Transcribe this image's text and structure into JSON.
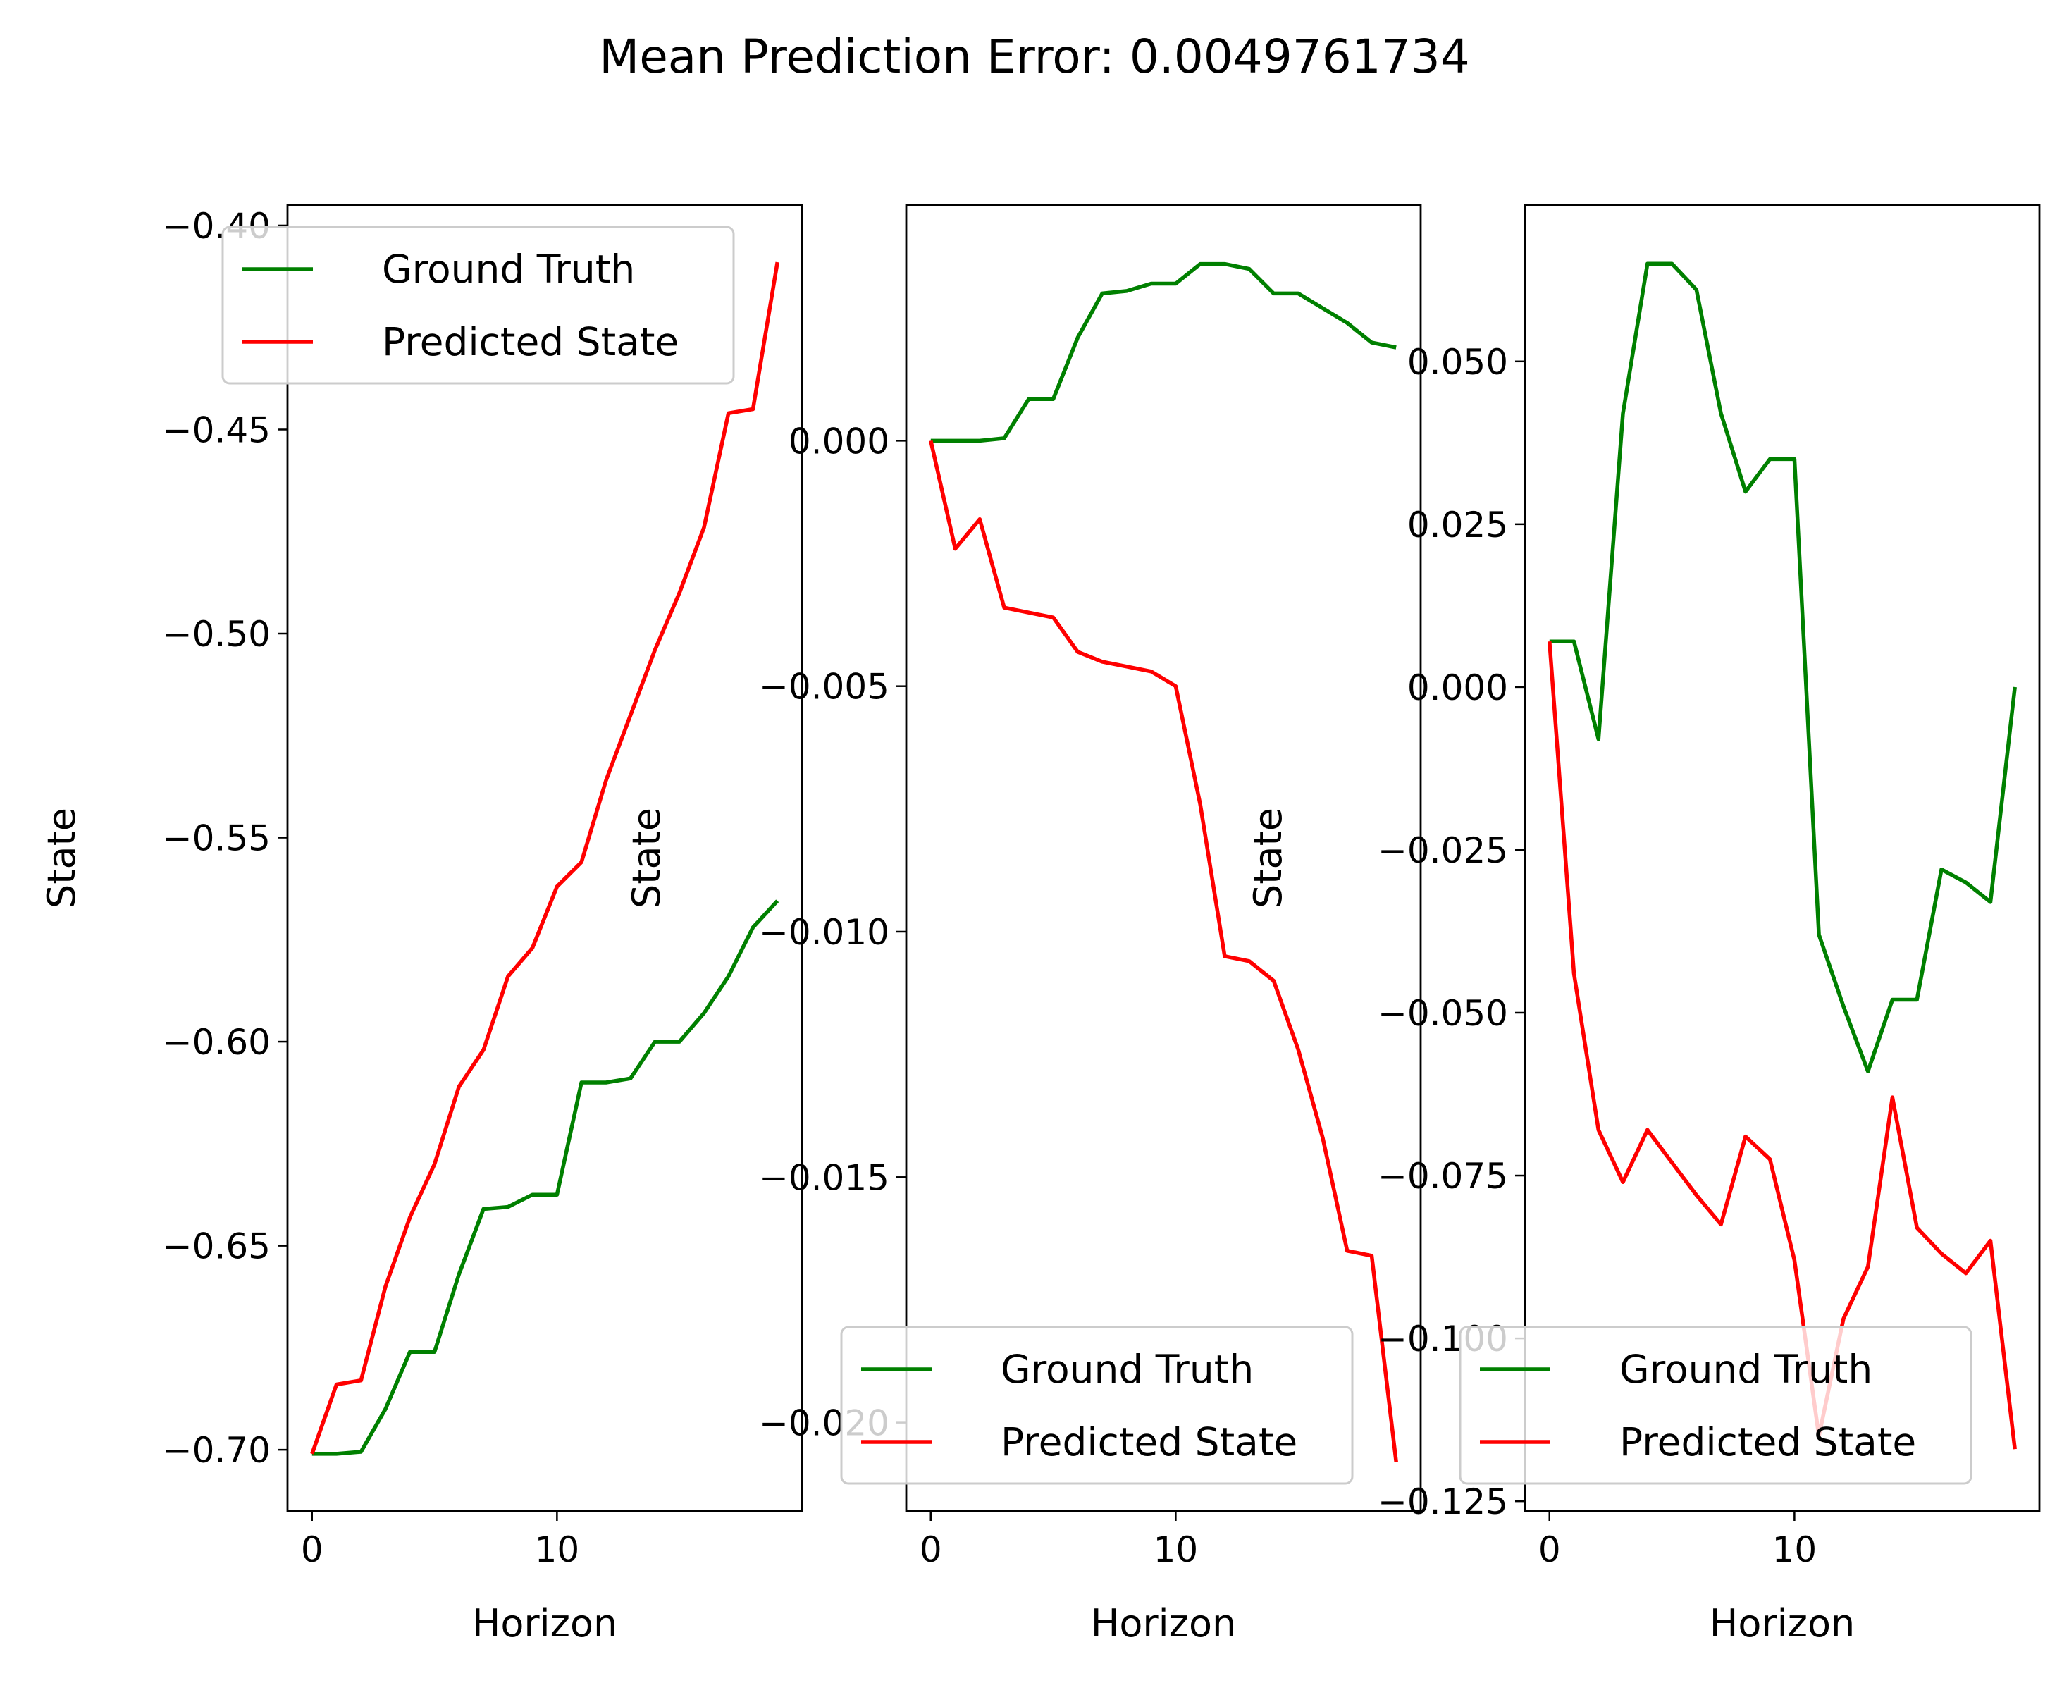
{
  "title": "Mean Prediction Error: 0.0049761734",
  "colors": {
    "ground_truth": "#008000",
    "predicted": "#ff0000",
    "frame": "#000000",
    "legend_edge": "#cccccc"
  },
  "chart_data": [
    {
      "type": "line",
      "xlabel": "Horizon",
      "ylabel": "State",
      "xlim": [
        -1,
        20
      ],
      "ylim": [
        -0.715,
        -0.395
      ],
      "xticks": [
        0,
        10
      ],
      "xtick_labels": [
        "0",
        "10"
      ],
      "yticks": [
        -0.7,
        -0.65,
        -0.6,
        -0.55,
        -0.5,
        -0.45,
        -0.4
      ],
      "ytick_labels": [
        "−0.70",
        "−0.65",
        "−0.60",
        "−0.55",
        "−0.50",
        "−0.45",
        "−0.40"
      ],
      "legend_position": "upper-left",
      "x": [
        0,
        1,
        2,
        3,
        4,
        5,
        6,
        7,
        8,
        9,
        10,
        11,
        12,
        13,
        14,
        15,
        16,
        17,
        18,
        19
      ],
      "series": [
        {
          "name": "Ground Truth",
          "color": "#008000",
          "values": [
            -0.701,
            -0.701,
            -0.7005,
            -0.69,
            -0.676,
            -0.676,
            -0.657,
            -0.641,
            -0.6405,
            -0.6375,
            -0.6375,
            -0.61,
            -0.61,
            -0.609,
            -0.6,
            -0.6,
            -0.593,
            -0.584,
            -0.572,
            -0.5655
          ]
        },
        {
          "name": "Predicted State",
          "color": "#ff0000",
          "values": [
            -0.701,
            -0.684,
            -0.683,
            -0.66,
            -0.643,
            -0.63,
            -0.611,
            -0.602,
            -0.584,
            -0.577,
            -0.562,
            -0.556,
            -0.536,
            -0.52,
            -0.504,
            -0.49,
            -0.474,
            -0.446,
            -0.445,
            -0.409
          ]
        }
      ]
    },
    {
      "type": "line",
      "xlabel": "Horizon",
      "ylabel": "State",
      "xlim": [
        -1,
        20
      ],
      "ylim": [
        -0.0218,
        0.0048
      ],
      "xticks": [
        0,
        10
      ],
      "xtick_labels": [
        "0",
        "10"
      ],
      "yticks": [
        -0.02,
        -0.015,
        -0.01,
        -0.005,
        0.0
      ],
      "ytick_labels": [
        "−0.020",
        "−0.015",
        "−0.010",
        "−0.005",
        "0.000"
      ],
      "legend_position": "lower-left",
      "x": [
        0,
        1,
        2,
        3,
        4,
        5,
        6,
        7,
        8,
        9,
        10,
        11,
        12,
        13,
        14,
        15,
        16,
        17,
        18,
        19
      ],
      "series": [
        {
          "name": "Ground Truth",
          "color": "#008000",
          "values": [
            0.0,
            0.0,
            0.0,
            5e-05,
            0.00085,
            0.00085,
            0.0021,
            0.003,
            0.00305,
            0.0032,
            0.0032,
            0.0036,
            0.0036,
            0.0035,
            0.003,
            0.003,
            0.0027,
            0.0024,
            0.002,
            0.0019
          ]
        },
        {
          "name": "Predicted State",
          "color": "#ff0000",
          "values": [
            0.0,
            -0.0022,
            -0.0016,
            -0.0034,
            -0.0035,
            -0.0036,
            -0.0043,
            -0.0045,
            -0.0046,
            -0.0047,
            -0.005,
            -0.0074,
            -0.0105,
            -0.0106,
            -0.011,
            -0.0124,
            -0.0142,
            -0.0165,
            -0.0166,
            -0.0208
          ]
        }
      ]
    },
    {
      "type": "line",
      "xlabel": "Horizon",
      "ylabel": "State",
      "xlim": [
        -1,
        20
      ],
      "ylim": [
        -0.1265,
        0.074
      ],
      "xticks": [
        0,
        10
      ],
      "xtick_labels": [
        "0",
        "10"
      ],
      "yticks": [
        -0.125,
        -0.1,
        -0.075,
        -0.05,
        -0.025,
        0.0,
        0.025,
        0.05
      ],
      "ytick_labels": [
        "−0.125",
        "−0.100",
        "−0.075",
        "−0.050",
        "−0.025",
        "0.000",
        "0.025",
        "0.050"
      ],
      "legend_position": "lower-left",
      "x": [
        0,
        1,
        2,
        3,
        4,
        5,
        6,
        7,
        8,
        9,
        10,
        11,
        12,
        13,
        14,
        15,
        16,
        17,
        18,
        19
      ],
      "series": [
        {
          "name": "Ground Truth",
          "color": "#008000",
          "values": [
            0.007,
            0.007,
            -0.008,
            0.042,
            0.065,
            0.065,
            0.061,
            0.042,
            0.03,
            0.035,
            0.035,
            -0.038,
            -0.049,
            -0.059,
            -0.048,
            -0.048,
            -0.028,
            -0.03,
            -0.033,
            0.0
          ]
        },
        {
          "name": "Predicted State",
          "color": "#ff0000",
          "values": [
            0.007,
            -0.044,
            -0.068,
            -0.076,
            -0.068,
            -0.073,
            -0.078,
            -0.0825,
            -0.069,
            -0.0725,
            -0.088,
            -0.115,
            -0.097,
            -0.089,
            -0.063,
            -0.083,
            -0.087,
            -0.09,
            -0.085,
            -0.117
          ]
        }
      ]
    }
  ]
}
